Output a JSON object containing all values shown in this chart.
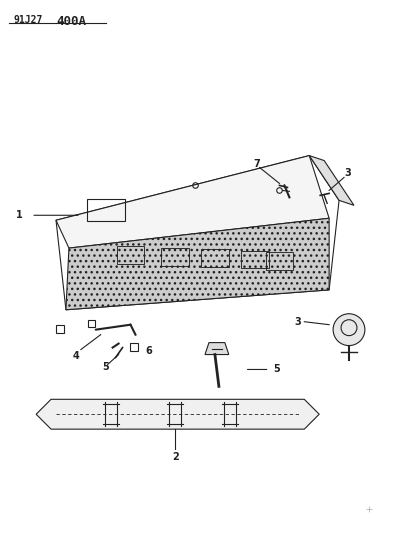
{
  "title": "91J27 400A",
  "bg_color": "#ffffff",
  "line_color": "#222222",
  "label_color": "#111111",
  "fig_width": 4.06,
  "fig_height": 5.33,
  "dpi": 100
}
